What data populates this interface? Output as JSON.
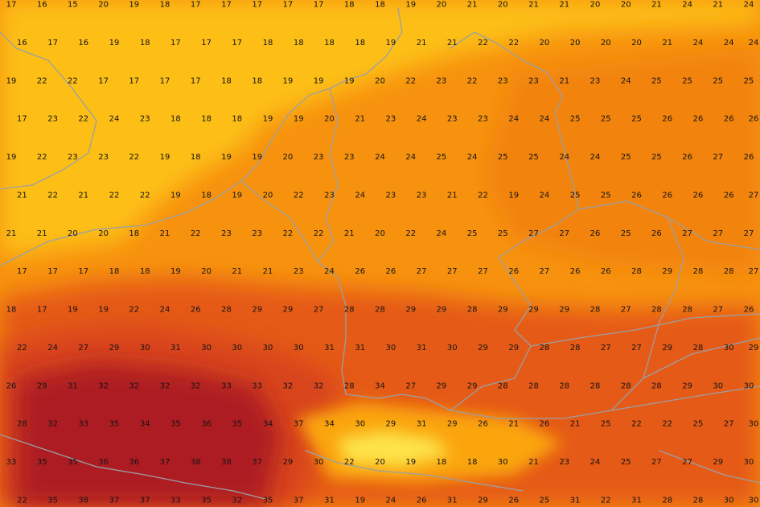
{
  "palette": {
    "t15_19": "#fdbf12",
    "t20_22": "#fba50f",
    "t23_24": "#f7920f",
    "t25_26": "#f28310",
    "t27_28": "#ec6f12",
    "t29_30": "#e55a16",
    "t31_32": "#d8441c",
    "t33_34": "#c42d22",
    "t35_38": "#ad1b22",
    "alpine_high": "#fde34a",
    "borders": "#9aa0a6"
  },
  "temperature_grid": {
    "unit": "°C",
    "rows": [
      [
        "17",
        "16",
        "15",
        "20",
        "19",
        "18",
        "17",
        "17",
        "17",
        "17",
        "17",
        "18",
        "18",
        "19",
        "20",
        "21",
        "20",
        "21",
        "21",
        "20",
        "20",
        "21",
        "24",
        "21",
        "24"
      ],
      [
        "16",
        "17",
        "16",
        "19",
        "18",
        "17",
        "17",
        "17",
        "18",
        "18",
        "18",
        "18",
        "19",
        "21",
        "21",
        "22",
        "22",
        "20",
        "20",
        "20",
        "20",
        "21",
        "24",
        "24",
        "24"
      ],
      [
        "19",
        "22",
        "22",
        "17",
        "17",
        "17",
        "17",
        "18",
        "18",
        "19",
        "19",
        "19",
        "20",
        "22",
        "23",
        "22",
        "23",
        "23",
        "21",
        "23",
        "24",
        "25",
        "25",
        "25",
        "25"
      ],
      [
        "17",
        "23",
        "22",
        "24",
        "23",
        "18",
        "18",
        "18",
        "19",
        "19",
        "20",
        "21",
        "23",
        "24",
        "23",
        "23",
        "24",
        "24",
        "25",
        "25",
        "25",
        "26",
        "26",
        "26",
        "26"
      ],
      [
        "19",
        "22",
        "23",
        "23",
        "22",
        "19",
        "18",
        "19",
        "19",
        "20",
        "23",
        "23",
        "24",
        "24",
        "25",
        "24",
        "25",
        "25",
        "24",
        "24",
        "25",
        "25",
        "26",
        "27",
        "26"
      ],
      [
        "21",
        "22",
        "21",
        "22",
        "22",
        "19",
        "18",
        "19",
        "20",
        "22",
        "23",
        "24",
        "23",
        "23",
        "21",
        "22",
        "19",
        "24",
        "25",
        "25",
        "26",
        "26",
        "26",
        "26",
        "27"
      ],
      [
        "21",
        "21",
        "20",
        "20",
        "18",
        "21",
        "22",
        "23",
        "23",
        "22",
        "22",
        "21",
        "20",
        "22",
        "24",
        "25",
        "25",
        "27",
        "27",
        "26",
        "25",
        "26",
        "27",
        "27",
        "27"
      ],
      [
        "17",
        "17",
        "17",
        "18",
        "18",
        "19",
        "20",
        "21",
        "21",
        "23",
        "24",
        "26",
        "26",
        "27",
        "27",
        "27",
        "26",
        "27",
        "26",
        "26",
        "28",
        "29",
        "28",
        "28",
        "27"
      ],
      [
        "18",
        "17",
        "19",
        "19",
        "22",
        "24",
        "26",
        "28",
        "29",
        "29",
        "27",
        "28",
        "28",
        "29",
        "29",
        "28",
        "29",
        "29",
        "29",
        "28",
        "27",
        "28",
        "28",
        "27",
        "26"
      ],
      [
        "22",
        "24",
        "27",
        "29",
        "30",
        "31",
        "30",
        "30",
        "30",
        "30",
        "31",
        "31",
        "30",
        "31",
        "30",
        "29",
        "29",
        "28",
        "28",
        "27",
        "27",
        "29",
        "28",
        "30",
        "29"
      ],
      [
        "26",
        "29",
        "31",
        "32",
        "32",
        "32",
        "32",
        "33",
        "33",
        "32",
        "32",
        "28",
        "34",
        "27",
        "29",
        "29",
        "28",
        "28",
        "28",
        "28",
        "28",
        "28",
        "29",
        "30",
        "30"
      ],
      [
        "28",
        "32",
        "33",
        "35",
        "34",
        "35",
        "36",
        "35",
        "34",
        "37",
        "34",
        "30",
        "29",
        "31",
        "29",
        "26",
        "21",
        "26",
        "21",
        "25",
        "22",
        "22",
        "25",
        "27",
        "30"
      ],
      [
        "33",
        "35",
        "35",
        "36",
        "36",
        "37",
        "38",
        "38",
        "37",
        "29",
        "30",
        "22",
        "20",
        "19",
        "18",
        "18",
        "30",
        "21",
        "23",
        "24",
        "25",
        "27",
        "27",
        "29",
        "30"
      ],
      [
        "22",
        "35",
        "38",
        "37",
        "37",
        "33",
        "35",
        "32",
        "35",
        "37",
        "31",
        "19",
        "24",
        "26",
        "31",
        "29",
        "26",
        "25",
        "31",
        "22",
        "31",
        "28",
        "28",
        "30",
        "30"
      ]
    ]
  }
}
